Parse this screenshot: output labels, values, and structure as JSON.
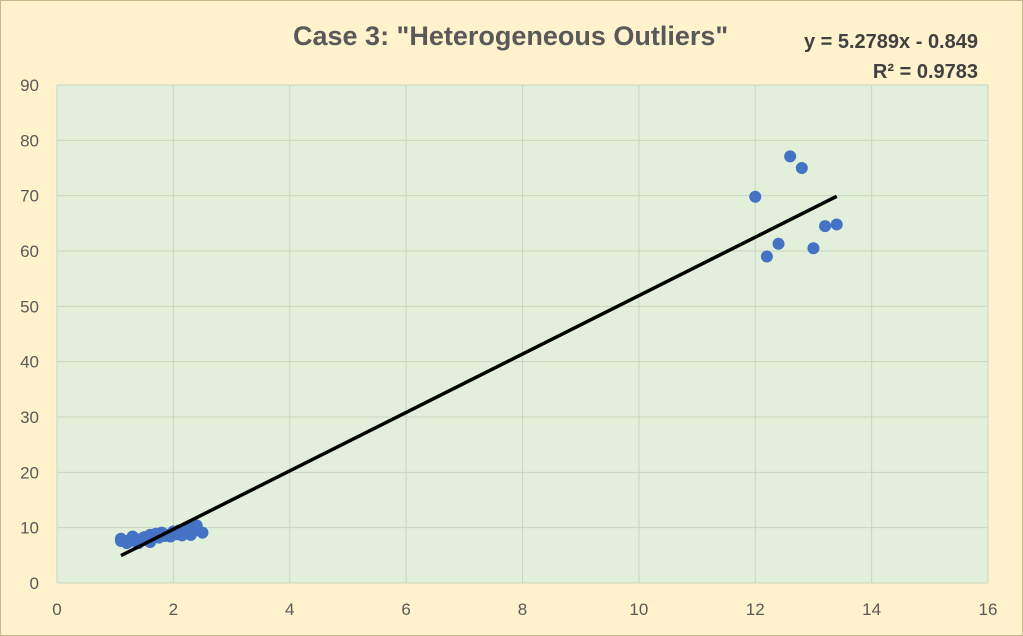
{
  "chart_data": {
    "type": "scatter",
    "title": "Case 3: \"Heterogeneous Outliers\"",
    "xlabel": "",
    "ylabel": "",
    "xlim": [
      0,
      16
    ],
    "ylim": [
      0,
      90
    ],
    "x_ticks": [
      0,
      2,
      4,
      6,
      8,
      10,
      12,
      14,
      16
    ],
    "y_ticks": [
      0,
      10,
      20,
      30,
      40,
      50,
      60,
      70,
      80,
      90
    ],
    "grid": true,
    "legend": "none",
    "colors": {
      "plot_background": "#E2EFDA",
      "chart_background": "#FFF2CC",
      "points": "#4472C4",
      "trendline": "#000000",
      "grid": "#C8D7C0"
    },
    "series": [
      {
        "points": [
          {
            "x": 1.1,
            "y": 8.0
          },
          {
            "x": 1.1,
            "y": 7.6
          },
          {
            "x": 1.2,
            "y": 7.2
          },
          {
            "x": 1.25,
            "y": 7.8
          },
          {
            "x": 1.3,
            "y": 8.4
          },
          {
            "x": 1.35,
            "y": 7.5
          },
          {
            "x": 1.4,
            "y": 7.2
          },
          {
            "x": 1.45,
            "y": 8.0
          },
          {
            "x": 1.5,
            "y": 8.3
          },
          {
            "x": 1.55,
            "y": 7.7
          },
          {
            "x": 1.6,
            "y": 7.4
          },
          {
            "x": 1.6,
            "y": 8.7
          },
          {
            "x": 1.7,
            "y": 8.9
          },
          {
            "x": 1.75,
            "y": 8.2
          },
          {
            "x": 1.8,
            "y": 9.1
          },
          {
            "x": 1.85,
            "y": 8.5
          },
          {
            "x": 1.9,
            "y": 8.7
          },
          {
            "x": 1.95,
            "y": 8.4
          },
          {
            "x": 2.0,
            "y": 9.3
          },
          {
            "x": 2.05,
            "y": 8.8
          },
          {
            "x": 2.1,
            "y": 9.5
          },
          {
            "x": 2.15,
            "y": 8.6
          },
          {
            "x": 2.2,
            "y": 9.8
          },
          {
            "x": 2.25,
            "y": 9.1
          },
          {
            "x": 2.3,
            "y": 10.2
          },
          {
            "x": 2.3,
            "y": 8.7
          },
          {
            "x": 2.35,
            "y": 9.4
          },
          {
            "x": 2.4,
            "y": 10.4
          },
          {
            "x": 2.5,
            "y": 9.1
          },
          {
            "x": 12.0,
            "y": 69.8
          },
          {
            "x": 12.2,
            "y": 59.0
          },
          {
            "x": 12.4,
            "y": 61.3
          },
          {
            "x": 12.6,
            "y": 77.1
          },
          {
            "x": 12.8,
            "y": 75.0
          },
          {
            "x": 13.0,
            "y": 60.5
          },
          {
            "x": 13.2,
            "y": 64.5
          },
          {
            "x": 13.4,
            "y": 64.8
          }
        ]
      }
    ],
    "trendline": {
      "slope": 5.2789,
      "intercept": -0.849,
      "x_range": [
        1.1,
        13.4
      ],
      "equation_label": "y = 5.2789x - 0.849",
      "r2_label": "R² = 0.9783"
    }
  }
}
